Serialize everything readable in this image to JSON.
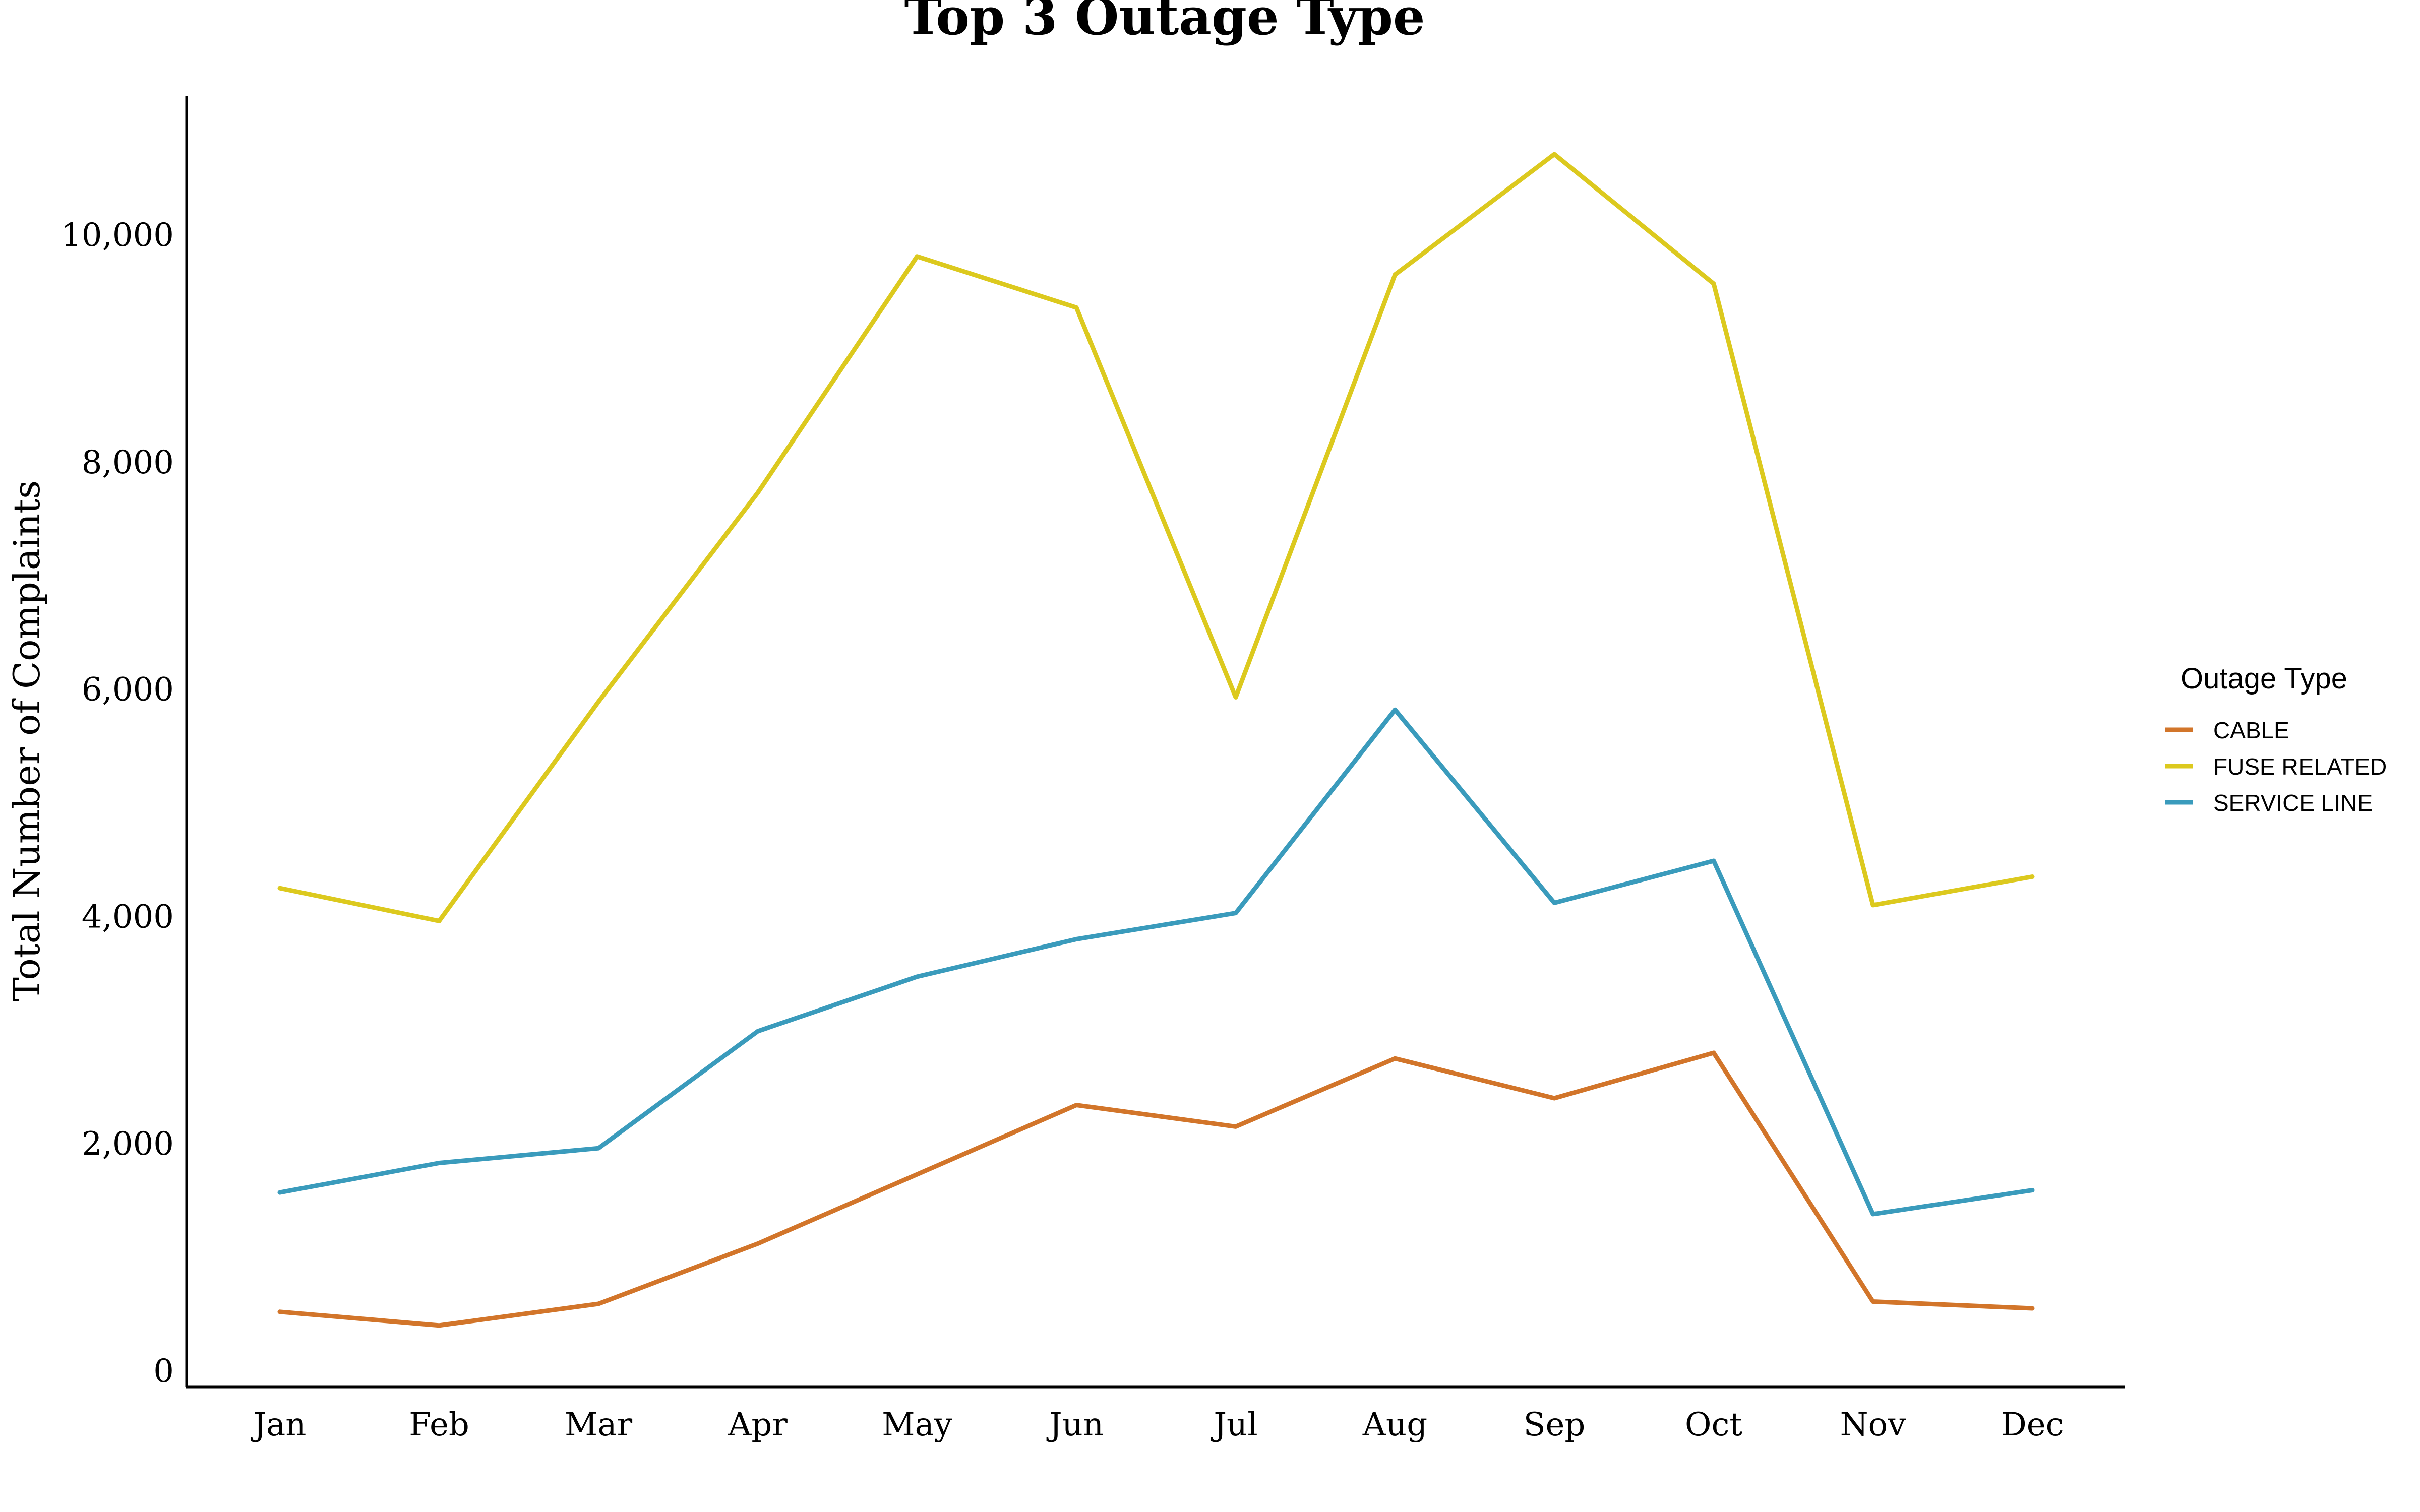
{
  "chart_data": {
    "type": "line",
    "title": "Top 3 Outage Type",
    "xlabel": "",
    "ylabel": "Total Number of Complaints",
    "categories": [
      "Jan",
      "Feb",
      "Mar",
      "Apr",
      "May",
      "Jun",
      "Jul",
      "Aug",
      "Sep",
      "Oct",
      "Nov",
      "Dec"
    ],
    "yticks": [
      0,
      2000,
      4000,
      6000,
      8000,
      10000
    ],
    "ytick_labels": [
      "0",
      "2,000",
      "4,000",
      "6,000",
      "8,000",
      "10,000"
    ],
    "ylim": [
      -150,
      11200
    ],
    "grid": false,
    "legend": {
      "title": "Outage Type",
      "placement": "right"
    },
    "series": [
      {
        "name": "CABLE",
        "color": "#d2752a",
        "values": [
          520,
          400,
          590,
          1120,
          1730,
          2340,
          2150,
          2750,
          2400,
          2800,
          610,
          550
        ]
      },
      {
        "name": "FUSE RELATED",
        "color": "#dcc91e",
        "values": [
          4250,
          3960,
          5890,
          7730,
          9810,
          9360,
          5930,
          9650,
          10710,
          9570,
          4100,
          4350
        ]
      },
      {
        "name": "SERVICE LINE",
        "color": "#3a9bbc",
        "values": [
          1570,
          1830,
          1960,
          2990,
          3470,
          3800,
          4030,
          5820,
          4120,
          4490,
          1380,
          1590
        ]
      }
    ]
  }
}
